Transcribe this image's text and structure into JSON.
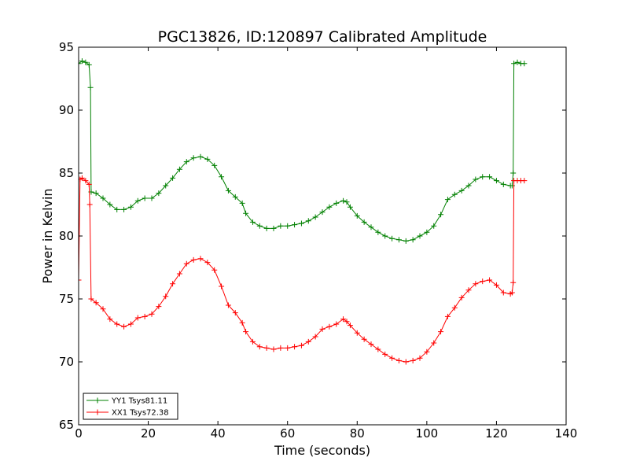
{
  "chart_data": {
    "type": "line",
    "title": "PGC13826, ID:120897 Calibrated Amplitude",
    "xlabel": "Time (seconds)",
    "ylabel": "Power in Kelvin",
    "xlim": [
      0,
      140
    ],
    "ylim": [
      65,
      95
    ],
    "xticks": [
      "0",
      "20",
      "40",
      "60",
      "80",
      "100",
      "120",
      "140"
    ],
    "yticks": [
      "65",
      "70",
      "75",
      "80",
      "85",
      "90",
      "95"
    ],
    "grid": false,
    "legend_position": "lower-left",
    "marker": "plus",
    "series": [
      {
        "name": "YY1 Tsys81.11",
        "color": "#008000",
        "points": [
          [
            0.0,
            93.7
          ],
          [
            1.0,
            93.9
          ],
          [
            2.0,
            93.8
          ],
          [
            3.0,
            93.6
          ],
          [
            3.4,
            91.8
          ],
          [
            3.6,
            83.5
          ],
          [
            5.0,
            83.4
          ],
          [
            7.0,
            83.0
          ],
          [
            9.0,
            82.5
          ],
          [
            11.0,
            82.1
          ],
          [
            13.0,
            82.1
          ],
          [
            15.0,
            82.3
          ],
          [
            17.0,
            82.8
          ],
          [
            19.0,
            83.0
          ],
          [
            21.0,
            83.0
          ],
          [
            23.0,
            83.4
          ],
          [
            25.0,
            84.0
          ],
          [
            27.0,
            84.6
          ],
          [
            29.0,
            85.3
          ],
          [
            31.0,
            85.9
          ],
          [
            33.0,
            86.2
          ],
          [
            35.0,
            86.3
          ],
          [
            37.0,
            86.1
          ],
          [
            39.0,
            85.6
          ],
          [
            41.0,
            84.7
          ],
          [
            43.0,
            83.6
          ],
          [
            45.0,
            83.1
          ],
          [
            47.0,
            82.6
          ],
          [
            48.0,
            81.8
          ],
          [
            50.0,
            81.1
          ],
          [
            52.0,
            80.8
          ],
          [
            54.0,
            80.6
          ],
          [
            56.0,
            80.6
          ],
          [
            58.0,
            80.8
          ],
          [
            60.0,
            80.8
          ],
          [
            62.0,
            80.9
          ],
          [
            64.0,
            81.0
          ],
          [
            66.0,
            81.2
          ],
          [
            68.0,
            81.5
          ],
          [
            70.0,
            81.9
          ],
          [
            72.0,
            82.3
          ],
          [
            74.0,
            82.6
          ],
          [
            76.0,
            82.8
          ],
          [
            77.0,
            82.7
          ],
          [
            78.0,
            82.3
          ],
          [
            80.0,
            81.6
          ],
          [
            82.0,
            81.1
          ],
          [
            84.0,
            80.7
          ],
          [
            86.0,
            80.3
          ],
          [
            88.0,
            80.0
          ],
          [
            90.0,
            79.8
          ],
          [
            92.0,
            79.7
          ],
          [
            94.0,
            79.6
          ],
          [
            96.0,
            79.7
          ],
          [
            98.0,
            80.0
          ],
          [
            100.0,
            80.3
          ],
          [
            102.0,
            80.8
          ],
          [
            104.0,
            81.7
          ],
          [
            106.0,
            82.9
          ],
          [
            108.0,
            83.3
          ],
          [
            110.0,
            83.6
          ],
          [
            112.0,
            84.0
          ],
          [
            114.0,
            84.5
          ],
          [
            116.0,
            84.7
          ],
          [
            118.0,
            84.7
          ],
          [
            120.0,
            84.4
          ],
          [
            122.0,
            84.1
          ],
          [
            124.0,
            84.0
          ],
          [
            124.5,
            84.0
          ],
          [
            124.8,
            85.0
          ],
          [
            125.0,
            93.7
          ],
          [
            126.0,
            93.8
          ],
          [
            127.0,
            93.7
          ],
          [
            128.0,
            93.7
          ]
        ]
      },
      {
        "name": "XX1 Tsys72.38",
        "color": "#ff0000",
        "points": [
          [
            0.0,
            76.5
          ],
          [
            0.4,
            84.5
          ],
          [
            1.0,
            84.6
          ],
          [
            2.0,
            84.4
          ],
          [
            3.0,
            84.1
          ],
          [
            3.2,
            82.5
          ],
          [
            3.6,
            75.0
          ],
          [
            5.0,
            74.7
          ],
          [
            7.0,
            74.2
          ],
          [
            9.0,
            73.4
          ],
          [
            11.0,
            73.0
          ],
          [
            13.0,
            72.8
          ],
          [
            15.0,
            73.0
          ],
          [
            17.0,
            73.5
          ],
          [
            19.0,
            73.6
          ],
          [
            21.0,
            73.8
          ],
          [
            23.0,
            74.4
          ],
          [
            25.0,
            75.2
          ],
          [
            27.0,
            76.2
          ],
          [
            29.0,
            77.0
          ],
          [
            31.0,
            77.8
          ],
          [
            33.0,
            78.1
          ],
          [
            35.0,
            78.2
          ],
          [
            37.0,
            77.9
          ],
          [
            39.0,
            77.3
          ],
          [
            41.0,
            76.0
          ],
          [
            43.0,
            74.5
          ],
          [
            45.0,
            73.9
          ],
          [
            47.0,
            73.1
          ],
          [
            48.0,
            72.4
          ],
          [
            50.0,
            71.6
          ],
          [
            52.0,
            71.2
          ],
          [
            54.0,
            71.1
          ],
          [
            56.0,
            71.0
          ],
          [
            58.0,
            71.1
          ],
          [
            60.0,
            71.1
          ],
          [
            62.0,
            71.2
          ],
          [
            64.0,
            71.3
          ],
          [
            66.0,
            71.6
          ],
          [
            68.0,
            72.0
          ],
          [
            70.0,
            72.6
          ],
          [
            72.0,
            72.8
          ],
          [
            74.0,
            73.0
          ],
          [
            76.0,
            73.4
          ],
          [
            77.0,
            73.2
          ],
          [
            78.0,
            72.9
          ],
          [
            80.0,
            72.3
          ],
          [
            82.0,
            71.8
          ],
          [
            84.0,
            71.4
          ],
          [
            86.0,
            71.0
          ],
          [
            88.0,
            70.6
          ],
          [
            90.0,
            70.3
          ],
          [
            92.0,
            70.1
          ],
          [
            94.0,
            70.0
          ],
          [
            96.0,
            70.1
          ],
          [
            98.0,
            70.3
          ],
          [
            100.0,
            70.8
          ],
          [
            102.0,
            71.5
          ],
          [
            104.0,
            72.4
          ],
          [
            106.0,
            73.6
          ],
          [
            108.0,
            74.3
          ],
          [
            110.0,
            75.1
          ],
          [
            112.0,
            75.7
          ],
          [
            114.0,
            76.2
          ],
          [
            116.0,
            76.4
          ],
          [
            118.0,
            76.5
          ],
          [
            120.0,
            76.1
          ],
          [
            122.0,
            75.5
          ],
          [
            124.0,
            75.4
          ],
          [
            124.5,
            75.5
          ],
          [
            124.8,
            76.3
          ],
          [
            125.0,
            84.4
          ],
          [
            126.0,
            84.4
          ],
          [
            127.0,
            84.4
          ],
          [
            128.0,
            84.4
          ]
        ]
      }
    ]
  }
}
